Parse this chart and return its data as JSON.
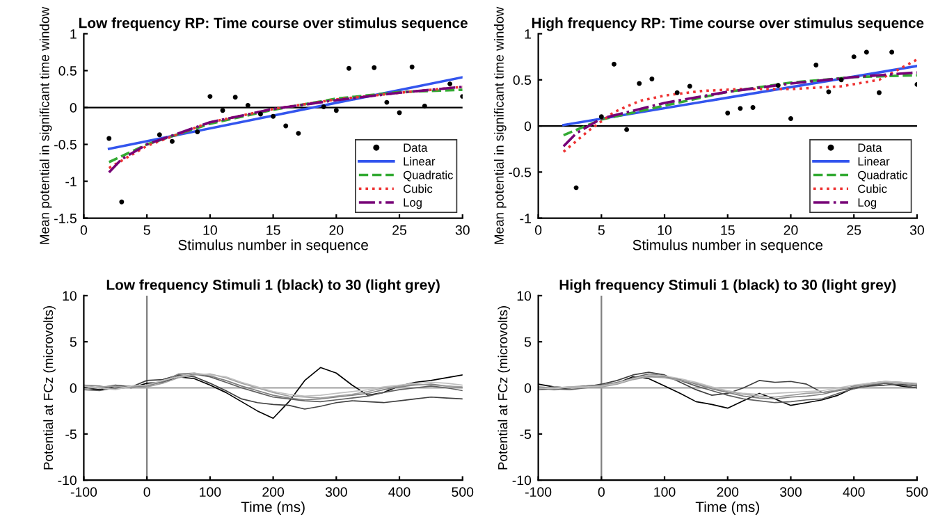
{
  "chart_data": [
    {
      "type": "line",
      "title": "Low frequency RP: Time course over stimulus sequence",
      "xlabel": "Stimulus number in sequence",
      "ylabel": "Mean potential in significant time window",
      "xlim": [
        0,
        30
      ],
      "xticks": [
        0,
        5,
        10,
        15,
        20,
        25,
        30
      ],
      "ylim": [
        -1.5,
        1
      ],
      "yticks": [
        -1.5,
        -1,
        -0.5,
        0,
        0.5,
        1
      ],
      "grid": false,
      "legend": "bottom right",
      "ref_lines": [
        {
          "axis": "y",
          "value": 0,
          "color": "#000000"
        }
      ],
      "series": [
        {
          "name": "Data",
          "type": "scatter",
          "marker": "circle",
          "color": "#000000",
          "x": [
            2,
            3,
            6,
            7,
            9,
            10,
            11,
            12,
            13,
            14,
            15,
            16,
            17,
            19,
            20,
            21,
            23,
            24,
            25,
            26,
            27,
            29,
            30
          ],
          "values": [
            -0.42,
            -1.28,
            -0.37,
            -0.46,
            -0.33,
            0.15,
            -0.04,
            0.14,
            0.03,
            -0.09,
            -0.12,
            -0.25,
            -0.35,
            0.01,
            -0.04,
            0.53,
            0.54,
            0.07,
            -0.07,
            0.55,
            0.02,
            0.32,
            0.15
          ]
        },
        {
          "name": "Linear",
          "type": "line",
          "line_style": "solid",
          "color": "#3355ee",
          "x": [
            2,
            30
          ],
          "values": [
            -0.56,
            0.41
          ]
        },
        {
          "name": "Quadratic",
          "type": "line",
          "line_style": "dashed",
          "color": "#33aa33",
          "x": [
            2,
            5,
            10,
            15,
            20,
            25,
            30
          ],
          "values": [
            -0.74,
            -0.5,
            -0.22,
            -0.03,
            0.12,
            0.21,
            0.24
          ]
        },
        {
          "name": "Cubic",
          "type": "line",
          "line_style": "dotted",
          "color": "#ee3333",
          "x": [
            2,
            5,
            10,
            15,
            20,
            25,
            30
          ],
          "values": [
            -0.82,
            -0.52,
            -0.2,
            -0.02,
            0.11,
            0.2,
            0.28
          ]
        },
        {
          "name": "Log",
          "type": "line",
          "line_style": "dashdot",
          "color": "#770077",
          "x": [
            2,
            3,
            5,
            10,
            15,
            20,
            25,
            30
          ],
          "values": [
            -0.88,
            -0.7,
            -0.5,
            -0.2,
            -0.02,
            0.1,
            0.2,
            0.28
          ]
        }
      ]
    },
    {
      "type": "line",
      "title": "High frequency RP: Time course over stimulus sequence",
      "xlabel": "Stimulus number in sequence",
      "ylabel": "Mean potential in significant time window",
      "xlim": [
        0,
        30
      ],
      "xticks": [
        0,
        5,
        10,
        15,
        20,
        25,
        30
      ],
      "ylim": [
        -1,
        1
      ],
      "yticks": [
        -1,
        -0.5,
        0,
        0.5,
        1
      ],
      "grid": false,
      "legend": "bottom right",
      "ref_lines": [
        {
          "axis": "y",
          "value": 0,
          "color": "#000000"
        }
      ],
      "series": [
        {
          "name": "Data",
          "type": "scatter",
          "marker": "circle",
          "color": "#000000",
          "x": [
            3,
            5,
            6,
            7,
            8,
            9,
            11,
            12,
            15,
            16,
            17,
            19,
            20,
            22,
            23,
            24,
            25,
            26,
            27,
            28,
            30
          ],
          "values": [
            -0.67,
            0.1,
            0.67,
            -0.04,
            0.46,
            0.51,
            0.36,
            0.43,
            0.14,
            0.19,
            0.2,
            0.44,
            0.08,
            0.66,
            0.37,
            0.5,
            0.75,
            0.8,
            0.36,
            0.8,
            0.45
          ]
        },
        {
          "name": "Linear",
          "type": "line",
          "line_style": "solid",
          "color": "#3355ee",
          "x": [
            2,
            30
          ],
          "values": [
            0.01,
            0.65
          ]
        },
        {
          "name": "Quadratic",
          "type": "line",
          "line_style": "dashed",
          "color": "#33aa33",
          "x": [
            2,
            5,
            10,
            15,
            20,
            25,
            30
          ],
          "values": [
            -0.1,
            0.07,
            0.22,
            0.37,
            0.47,
            0.53,
            0.55
          ]
        },
        {
          "name": "Cubic",
          "type": "line",
          "line_style": "dotted",
          "color": "#ee3333",
          "x": [
            2,
            4,
            6,
            8,
            10,
            13,
            16,
            20,
            24,
            27,
            30
          ],
          "values": [
            -0.28,
            -0.05,
            0.15,
            0.27,
            0.33,
            0.38,
            0.4,
            0.4,
            0.43,
            0.5,
            0.72
          ]
        },
        {
          "name": "Log",
          "type": "line",
          "line_style": "dashdot",
          "color": "#770077",
          "x": [
            2,
            3,
            5,
            10,
            15,
            20,
            25,
            30
          ],
          "values": [
            -0.22,
            -0.08,
            0.08,
            0.25,
            0.37,
            0.46,
            0.53,
            0.58
          ]
        }
      ]
    },
    {
      "type": "line",
      "title": "Low frequency Stimuli 1 (black) to 30 (light grey)",
      "xlabel": "Time (ms)",
      "ylabel": "Potential at FCz (microvolts)",
      "xlim": [
        -100,
        500
      ],
      "xticks": [
        -100,
        0,
        100,
        200,
        300,
        400,
        500
      ],
      "ylim": [
        -10,
        10
      ],
      "yticks": [
        -10,
        -5,
        0,
        5,
        10
      ],
      "grid": false,
      "ref_lines": [
        {
          "axis": "x",
          "value": 0,
          "color": "#808080"
        },
        {
          "axis": "y",
          "value": 0,
          "color": "#a0a0a0"
        }
      ],
      "x": [
        -100,
        -75,
        -50,
        -25,
        0,
        25,
        50,
        75,
        100,
        125,
        150,
        175,
        200,
        225,
        250,
        275,
        300,
        325,
        350,
        375,
        400,
        425,
        450,
        475,
        500
      ],
      "series": [
        {
          "color": "#000000",
          "values": [
            0,
            -0.2,
            0.2,
            0,
            0.5,
            0.6,
            1.2,
            1.0,
            0.3,
            -0.5,
            -1.5,
            -2.5,
            -3.3,
            -1.5,
            0.8,
            2.2,
            1.6,
            0.3,
            -0.8,
            -0.5,
            0.2,
            0.6,
            0.8,
            1.1,
            1.4
          ]
        },
        {
          "color": "#404040",
          "values": [
            0.2,
            0,
            0.3,
            0.1,
            0.8,
            0.9,
            1.4,
            1.2,
            0.5,
            -0.3,
            -1.2,
            -1.6,
            -1.8,
            -1.9,
            -2.3,
            -2.0,
            -1.6,
            -1.4,
            -1.5,
            -1.6,
            -1.4,
            -1.2,
            -1.0,
            -1.1,
            -1.2
          ]
        },
        {
          "color": "#606060",
          "values": [
            -0.2,
            -0.3,
            0,
            0.2,
            0.3,
            0.6,
            1.3,
            1.5,
            1.2,
            0.6,
            0,
            -0.5,
            -1.0,
            -1.2,
            -1.4,
            -1.5,
            -1.3,
            -1.1,
            -0.9,
            -0.5,
            -0.2,
            0,
            0.2,
            0,
            -0.3
          ]
        },
        {
          "color": "#808080",
          "values": [
            0.3,
            0.2,
            -0.1,
            0.1,
            0.2,
            0.7,
            1.5,
            1.6,
            1.3,
            0.8,
            0.2,
            -0.3,
            -0.8,
            -1.1,
            -1.3,
            -1.2,
            -1.0,
            -0.8,
            -0.6,
            -0.2,
            0.1,
            0.3,
            0.4,
            0.2,
            0
          ]
        },
        {
          "color": "#a0a0a0",
          "values": [
            -0.1,
            0.1,
            0.2,
            0,
            0.1,
            0.5,
            1.1,
            1.4,
            1.5,
            1.1,
            0.5,
            0,
            -0.5,
            -0.9,
            -1.0,
            -1.1,
            -0.9,
            -0.7,
            -0.4,
            0,
            0.2,
            0.4,
            0.3,
            0.2,
            0.1
          ]
        },
        {
          "color": "#c0c0c0",
          "values": [
            0.2,
            0,
            -0.2,
            0.2,
            0.3,
            0.8,
            1.2,
            1.6,
            1.4,
            1.2,
            0.6,
            0.1,
            -0.4,
            -0.7,
            -0.9,
            -0.8,
            -0.6,
            -0.4,
            -0.2,
            0.1,
            0.3,
            0.5,
            0.6,
            0.5,
            0.3
          ]
        }
      ]
    },
    {
      "type": "line",
      "title": "High frequency Stimuli 1 (black) to 30 (light grey)",
      "xlabel": "Time (ms)",
      "ylabel": "Potential at FCz (microvolts)",
      "xlim": [
        -100,
        500
      ],
      "xticks": [
        -100,
        0,
        100,
        200,
        300,
        400,
        500
      ],
      "ylim": [
        -10,
        10
      ],
      "yticks": [
        -10,
        -5,
        0,
        5,
        10
      ],
      "grid": false,
      "ref_lines": [
        {
          "axis": "x",
          "value": 0,
          "color": "#808080"
        },
        {
          "axis": "y",
          "value": 0,
          "color": "#a0a0a0"
        }
      ],
      "x": [
        -100,
        -75,
        -50,
        -25,
        0,
        25,
        50,
        75,
        100,
        125,
        150,
        175,
        200,
        225,
        250,
        275,
        300,
        325,
        350,
        375,
        400,
        425,
        450,
        475,
        500
      ],
      "series": [
        {
          "color": "#000000",
          "values": [
            0.4,
            0.1,
            0,
            0.2,
            0.3,
            0.5,
            1.2,
            1.0,
            0.2,
            -0.6,
            -1.5,
            -1.8,
            -2.2,
            -1.4,
            -0.6,
            -1.2,
            -1.9,
            -1.6,
            -1.3,
            -0.8,
            0,
            0.3,
            0.5,
            0.2,
            0
          ]
        },
        {
          "color": "#404040",
          "values": [
            0,
            -0.2,
            0,
            0.1,
            0.4,
            0.8,
            1.4,
            1.7,
            1.4,
            0.6,
            -0.2,
            -0.8,
            -0.6,
            0,
            0.8,
            0.6,
            0.7,
            0.4,
            -0.5,
            -0.3,
            0,
            0.2,
            0.3,
            0.4,
            0.2
          ]
        },
        {
          "color": "#606060",
          "values": [
            -0.2,
            -0.1,
            -0.2,
            0,
            0.2,
            0.5,
            1.1,
            1.5,
            1.3,
            0.8,
            0.2,
            -0.3,
            -0.8,
            -1.2,
            -1.4,
            -1.6,
            -1.5,
            -1.3,
            -1.2,
            -0.6,
            -0.1,
            0.3,
            0.5,
            0.3,
            0
          ]
        },
        {
          "color": "#808080",
          "values": [
            0.1,
            0,
            0.1,
            0.2,
            0.3,
            0.6,
            1.0,
            1.3,
            1.2,
            0.9,
            0.4,
            -0.1,
            -0.5,
            -0.9,
            -1.1,
            -1.2,
            -1.0,
            -0.9,
            -0.7,
            -0.3,
            0.2,
            0.5,
            0.7,
            0.6,
            0.4
          ]
        },
        {
          "color": "#a0a0a0",
          "values": [
            -0.1,
            0.1,
            0,
            0,
            0.1,
            0.4,
            0.9,
            1.2,
            1.1,
            0.8,
            0.5,
            0,
            -0.4,
            -0.7,
            -0.9,
            -1.0,
            -0.8,
            -0.6,
            -0.5,
            -0.2,
            0.1,
            0.4,
            0.6,
            0.5,
            0.3
          ]
        },
        {
          "color": "#c0c0c0",
          "values": [
            0,
            -0.1,
            0.1,
            0.1,
            0.2,
            0.5,
            1.0,
            1.4,
            1.3,
            1.0,
            0.6,
            0.1,
            -0.3,
            -0.6,
            -0.7,
            -0.6,
            -0.5,
            -0.4,
            -0.3,
            0,
            0.3,
            0.5,
            0.7,
            0.6,
            0.5
          ]
        }
      ]
    }
  ]
}
